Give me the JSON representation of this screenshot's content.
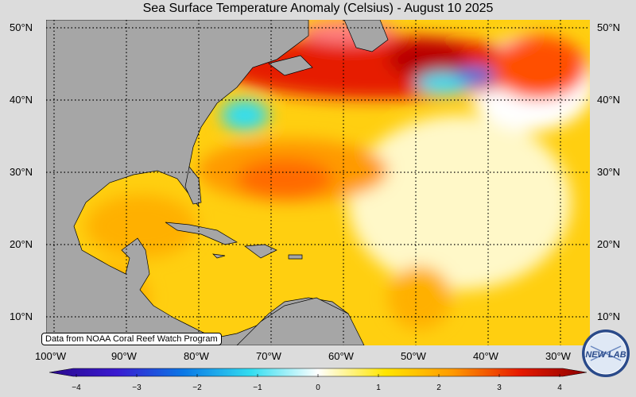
{
  "title": "Sea Surface Temperature Anomaly (Celsius) - August 10 2025",
  "credit": "Data from NOAA Coral Reef Watch Program",
  "lon_labels": [
    "100°W",
    "90°W",
    "80°W",
    "70°W",
    "60°W",
    "50°W",
    "40°W",
    "30°W"
  ],
  "lat_labels": [
    "50°N",
    "40°N",
    "30°N",
    "20°N",
    "10°N"
  ],
  "colorbar": {
    "ticks": [
      "−4",
      "−3",
      "−2",
      "−1",
      "0",
      "1",
      "2",
      "3",
      "4"
    ],
    "min": -4,
    "max": 4
  },
  "logo_text": "NEW LAB",
  "colors": {
    "land": "#a6a6a6",
    "background": "#dcdcdc",
    "neg4": "#2a0a8c",
    "neg2": "#0a78e6",
    "neg1": "#33ddf0",
    "zero": "#ffffff",
    "pos1": "#ffe600",
    "pos2": "#ff9a00",
    "pos3": "#e61a00",
    "pos4": "#8c0000"
  }
}
